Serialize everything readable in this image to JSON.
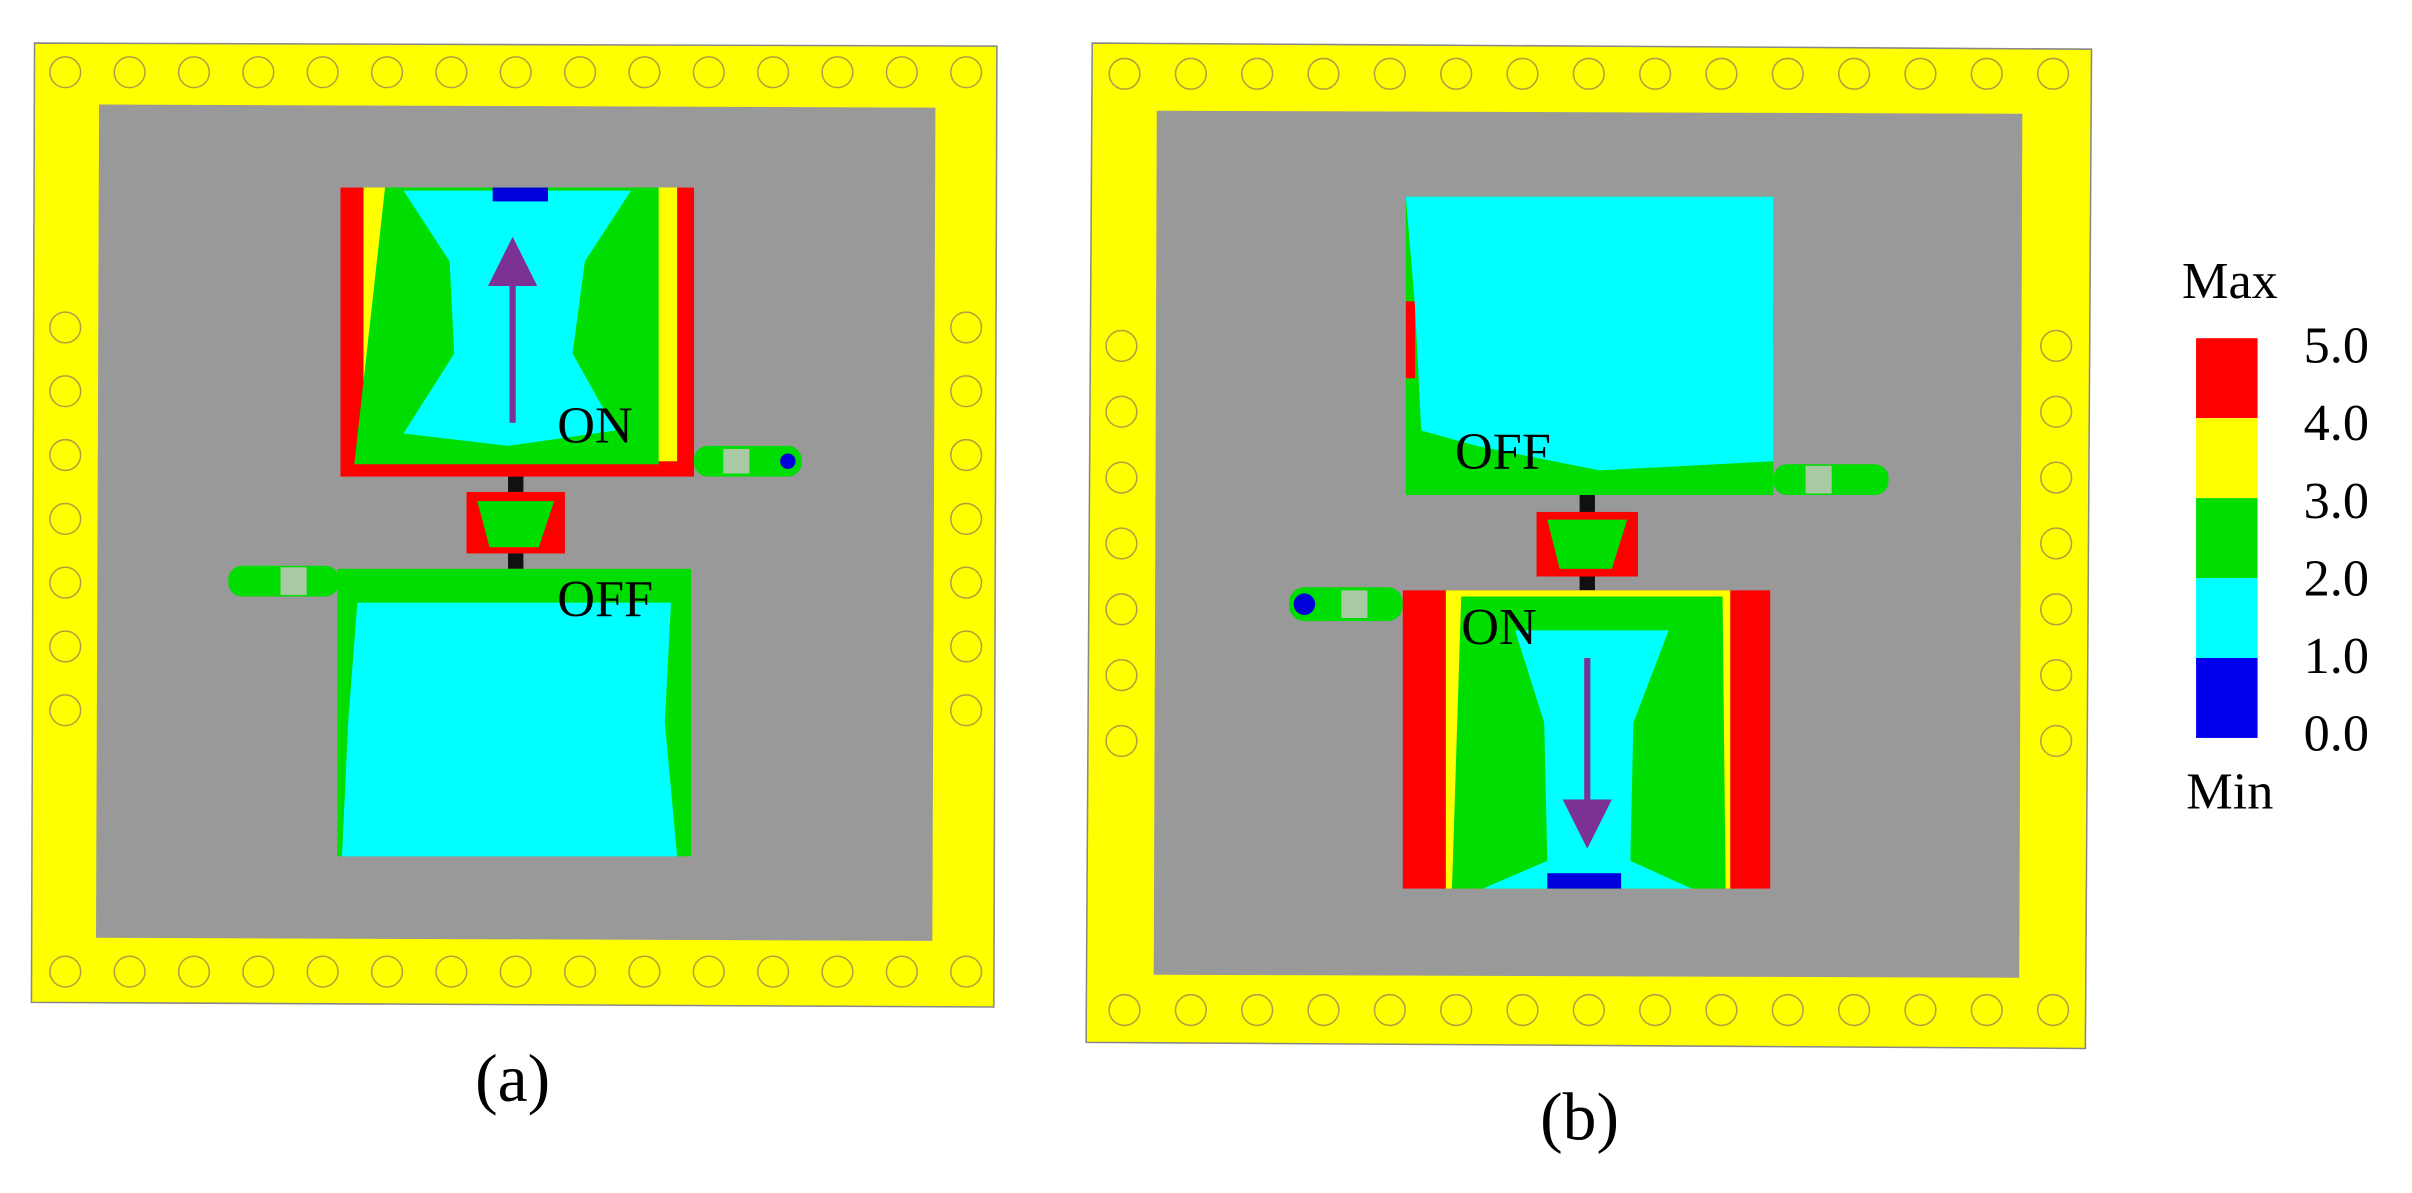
{
  "panels": [
    {
      "caption": "(a)",
      "labels": [
        "ON",
        "OFF"
      ]
    },
    {
      "caption": "(b)",
      "labels": [
        "OFF",
        "ON"
      ]
    }
  ],
  "legend": {
    "max": "Max",
    "min": "Min",
    "ticks": [
      "5.0",
      "4.0",
      "3.0",
      "2.0",
      "1.0",
      "0.0"
    ]
  }
}
